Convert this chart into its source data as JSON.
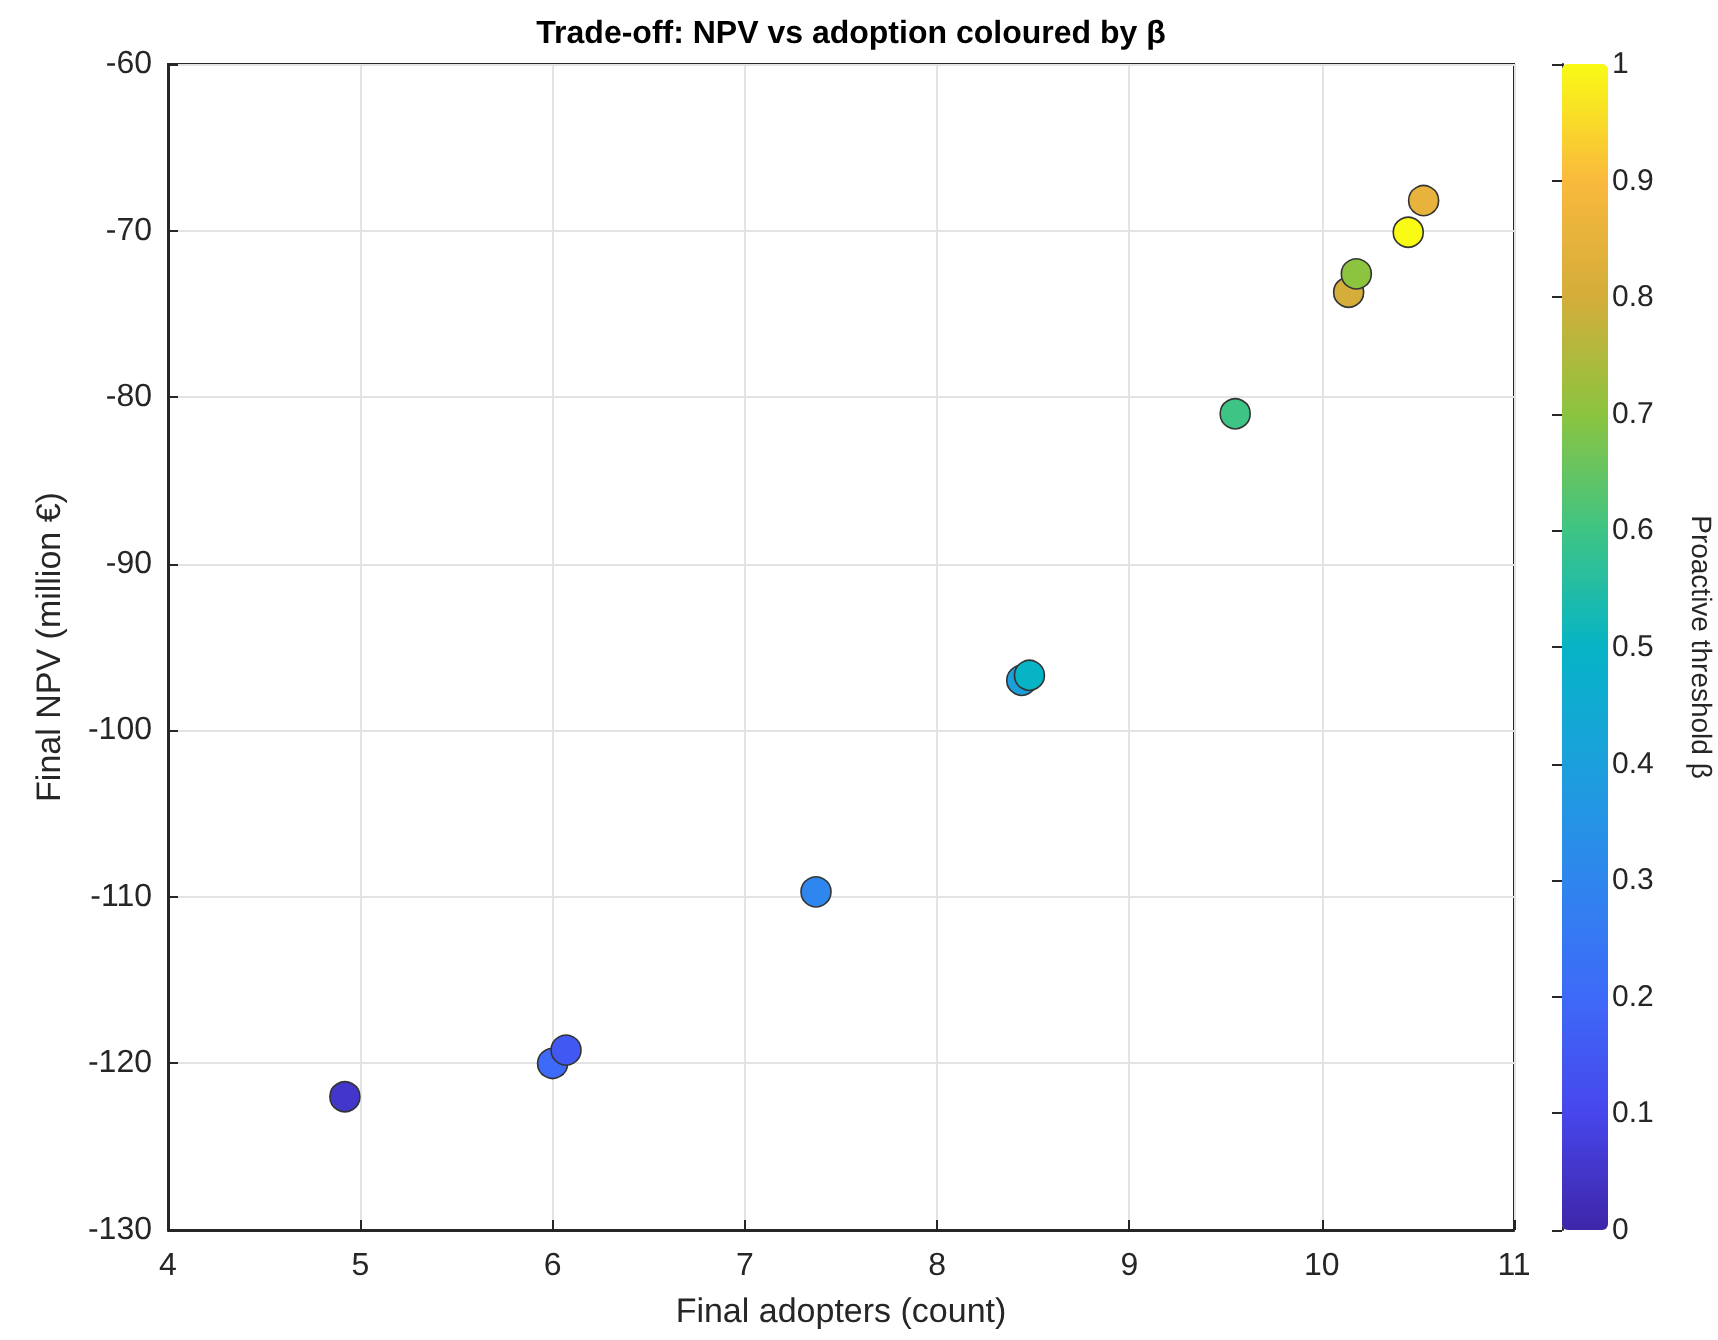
{
  "chart_data": {
    "type": "scatter",
    "title": "Trade-off: NPV vs adoption coloured by β",
    "xlabel": "Final adopters (count)",
    "ylabel": "Final NPV (million €)",
    "clabel": "Proactive threshold β",
    "x": [
      4.92,
      6.0,
      6.07,
      7.37,
      8.44,
      8.48,
      9.55,
      10.14,
      10.18,
      10.45,
      10.53
    ],
    "values": [
      -122.0,
      -120.0,
      -119.2,
      -109.7,
      -97.0,
      -96.7,
      -81.0,
      -73.7,
      -72.6,
      -70.1,
      -68.2
    ],
    "cvalues": [
      0.05,
      0.2,
      0.15,
      0.3,
      0.4,
      0.5,
      0.6,
      0.8,
      0.7,
      1.0,
      0.85
    ],
    "xlim": [
      4,
      11
    ],
    "xticks": [
      4,
      5,
      6,
      7,
      8,
      9,
      10,
      11
    ],
    "ylim": [
      -130,
      -60
    ],
    "yticks": [
      -130,
      -120,
      -110,
      -100,
      -90,
      -80,
      -70,
      -60
    ],
    "clim": [
      0,
      1
    ],
    "cticks": [
      0,
      0.1,
      0.2,
      0.3,
      0.4,
      0.5,
      0.6,
      0.7,
      0.8,
      0.9,
      1
    ],
    "grid": true,
    "marker": "circle"
  }
}
